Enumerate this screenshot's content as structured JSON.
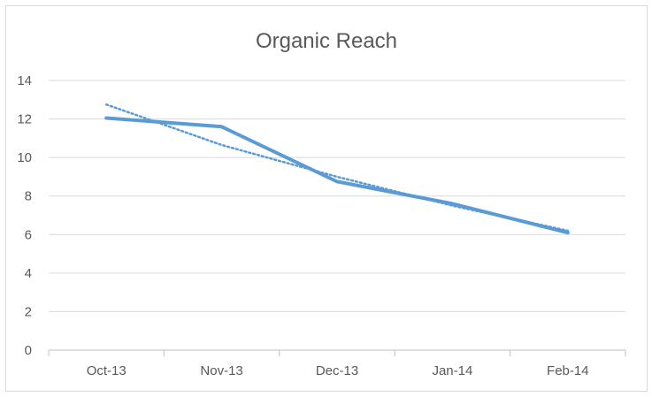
{
  "chart_data": {
    "type": "line",
    "title": "Organic Reach",
    "categories": [
      "Oct-13",
      "Nov-13",
      "Dec-13",
      "Jan-14",
      "Feb-14"
    ],
    "series": [
      {
        "values": [
          12.05,
          11.6,
          8.75,
          7.6,
          6.1
        ],
        "color": "#5b9bd5",
        "style": "solid"
      }
    ],
    "trendline": {
      "type": "linear",
      "values": [
        12.75,
        10.65,
        9.0,
        7.5,
        6.2
      ],
      "color": "#5b9bd5",
      "style": "dotted"
    },
    "ylim": [
      0,
      14
    ],
    "yticks": [
      "0",
      "2",
      "4",
      "6",
      "8",
      "10",
      "12",
      "14"
    ],
    "grid": true,
    "legend": "none"
  }
}
